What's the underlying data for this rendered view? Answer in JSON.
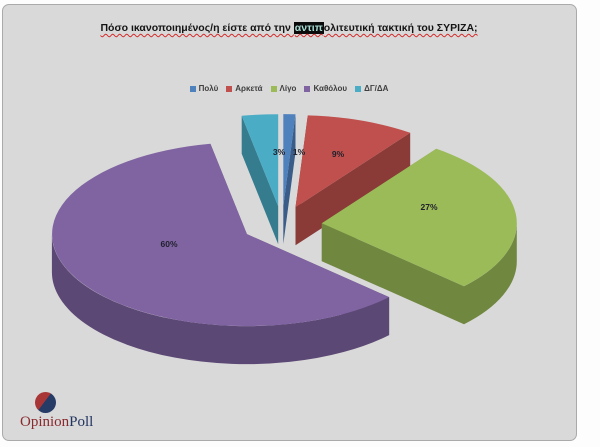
{
  "window": {
    "canvas_bg": "#fdfdfd",
    "panel_bg": "#d9d9d9",
    "panel_border": "#aaaaaa"
  },
  "title": {
    "pre": "Πόσο ικανοποιημένος/η είστε από την ",
    "highlight": "αντιπ",
    "post": "ολιτευτική τακτική του ΣΥΡΙΖΑ;",
    "highlight_bg": "#0b0b0b",
    "highlight_fg": "#a9ddd5",
    "squiggle_color": "#d42a2a"
  },
  "chart_data": {
    "type": "pie",
    "style": "3d-exploded",
    "title": "Πόσο ικανοποιημένος/η είστε από την αντιπολιτευτική τακτική του ΣΥΡΙΖΑ;",
    "categories": [
      "Πολύ",
      "Αρκετά",
      "Λίγο",
      "Καθόλου",
      "ΔΓ/ΔΑ"
    ],
    "values": [
      1,
      9,
      27,
      60,
      3
    ],
    "labels": [
      "1%",
      "9%",
      "27%",
      "60%",
      "3%"
    ],
    "colors": [
      "#4f81bd",
      "#c0504d",
      "#9bbb59",
      "#8064a2",
      "#4bacc6"
    ],
    "label_color": "#20202c",
    "legend_position": "top",
    "start_angle_deg": 0,
    "direction": "clockwise",
    "unit": "percent"
  },
  "logo": {
    "text_primary": "Opinion",
    "text_secondary": "Poll",
    "primary_color": "#8a2a2e",
    "secondary_color": "#20335f",
    "mark_red": "#a83636",
    "mark_blue": "#263b66"
  }
}
